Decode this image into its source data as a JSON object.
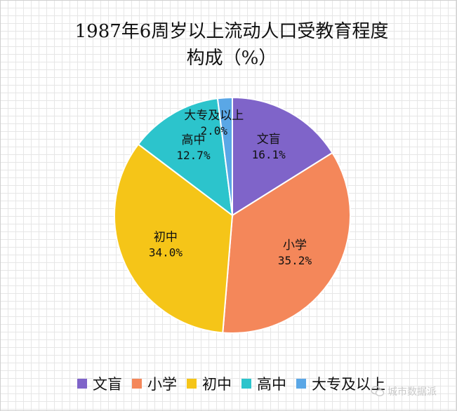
{
  "title_line1": "1987年6周岁以上流动人口受教育程度",
  "title_line2": "构成（%）",
  "watermark": "城市数据派",
  "chart_data": {
    "type": "pie",
    "title": "1987年6周岁以上流动人口受教育程度构成（%）",
    "categories": [
      "文盲",
      "小学",
      "初中",
      "高中",
      "大专及以上"
    ],
    "values": [
      16.1,
      35.2,
      34.0,
      12.7,
      2.0
    ],
    "labels": [
      "16.1%",
      "35.2%",
      "34.0%",
      "12.7%",
      "2.0%"
    ],
    "colors": [
      "#7f64c9",
      "#f4875a",
      "#f5c518",
      "#2cc4cc",
      "#5aa7e6"
    ],
    "legend_position": "bottom"
  }
}
